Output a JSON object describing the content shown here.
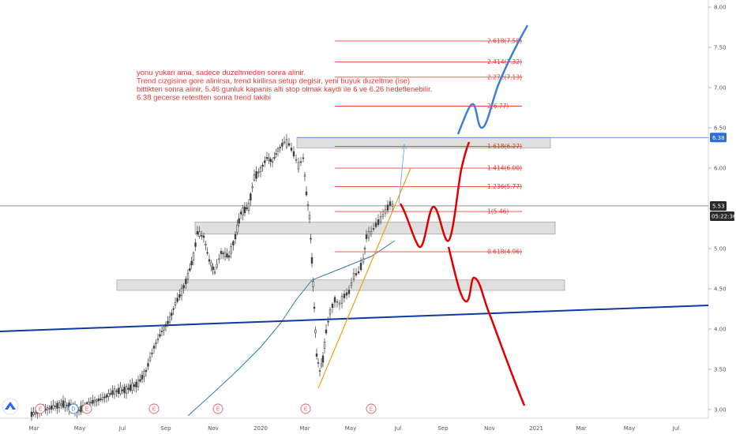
{
  "chart_data": {
    "type": "candlestick",
    "y_scale": "linear",
    "ylim": [
      2.95,
      8.05
    ],
    "y_ticks": [
      "8.00",
      "7.50",
      "7.00",
      "6.50",
      "6.00",
      "5.50",
      "5.00",
      "4.50",
      "4.00",
      "3.50",
      "3.00"
    ],
    "y_tick_values": [
      8.0,
      7.5,
      7.0,
      6.5,
      6.0,
      5.5,
      5.0,
      4.5,
      4.0,
      3.5,
      3.0
    ],
    "x_tick_labels": [
      "Mar",
      "May",
      "Jul",
      "Sep",
      "Nov",
      "2020",
      "Mar",
      "May",
      "Jul",
      "Sep",
      "Nov",
      "2021",
      "Mar",
      "May",
      "Jul"
    ],
    "grid": false,
    "current_price": "5.53",
    "countdown": "05:22:36",
    "highlight_price": "6.38",
    "annotation_lines": [
      "yonu yukari ama, sadece duzeltmeden sonra alinir.",
      "Trend cizgisine gore alinirsa, trend kirilirsa setup degisir, yeni buyuk duzeltme (ise)",
      "bittikten sonra alinir, 5.46 gunluk kapanis alti stop olmak kaydi ile 6 ve 6.26 hedeflenebilir.",
      "6.38 gecerse retestten sonra trend takibi"
    ],
    "fib_levels": [
      {
        "label": "2.618(7.58)",
        "value": 7.58
      },
      {
        "label": "2.414(7.32)",
        "value": 7.32
      },
      {
        "label": "2.272(7.13)",
        "value": 7.13
      },
      {
        "label": "2(6.77)",
        "value": 6.77
      },
      {
        "label": "1.618(6.27)",
        "value": 6.27
      },
      {
        "label": "1.414(6.00)",
        "value": 6.0
      },
      {
        "label": "1.236(5.77)",
        "value": 5.77
      },
      {
        "label": "1(5.46)",
        "value": 5.46
      },
      {
        "label": "0.618(4.96)",
        "value": 4.96
      }
    ],
    "zones": [
      {
        "low": 6.25,
        "high": 6.38
      },
      {
        "low": 5.18,
        "high": 5.33
      },
      {
        "low": 4.48,
        "high": 4.61
      }
    ],
    "events": [
      {
        "letter": "E",
        "type": "earnings"
      },
      {
        "letter": "D",
        "type": "dividend"
      },
      {
        "letter": "E",
        "type": "earnings"
      },
      {
        "letter": "E",
        "type": "earnings"
      },
      {
        "letter": "E",
        "type": "earnings"
      },
      {
        "letter": "E",
        "type": "earnings"
      },
      {
        "letter": "E",
        "type": "earnings"
      }
    ],
    "colors": {
      "candle": "#3a3a3a",
      "fib": "#f44336",
      "projection_red": "#e00000",
      "projection_blue": "#3d7fd6",
      "long_trend": "#0d3b9e",
      "short_trend": "#f59a16",
      "moving_average": "#2f7fa0",
      "zone_fill": "#d9d9d9",
      "price_tag": "#2a2a2a",
      "highlight_tag": "#2d6fd6"
    }
  }
}
